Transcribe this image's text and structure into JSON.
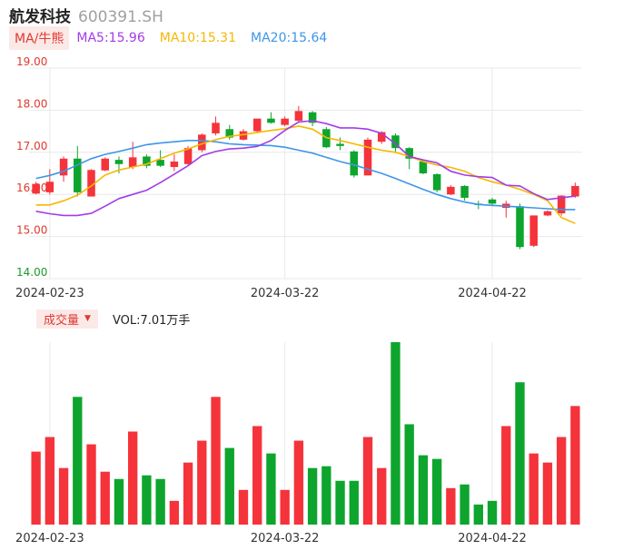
{
  "header": {
    "name": "航发科技",
    "code": "600391.SH"
  },
  "ma": {
    "toggle_label": "MA/牛熊",
    "items": [
      {
        "text": "MA5:15.96",
        "color": "#a23ce8"
      },
      {
        "text": "MA10:15.31",
        "color": "#f5b800"
      },
      {
        "text": "MA20:15.64",
        "color": "#3d96e8"
      }
    ]
  },
  "volume": {
    "toggle_label": "成交量",
    "value_text": "VOL:7.01万手"
  },
  "colors": {
    "up": "#f5333a",
    "down": "#0da52d",
    "grid": "#e8e8e8"
  },
  "chart_data": {
    "type": "candlestick",
    "y_axis": {
      "ticks": [
        "19.00",
        "18.00",
        "17.00",
        "16.00",
        "15.00",
        "14.00"
      ],
      "range": [
        14.0,
        19.0
      ]
    },
    "x_axis": {
      "tick_labels": [
        {
          "label": "2024-02-23",
          "index": 1
        },
        {
          "label": "2024-03-22",
          "index": 18
        },
        {
          "label": "2024-04-22",
          "index": 33
        }
      ]
    },
    "candles": [
      {
        "o": 16.02,
        "c": 16.25,
        "h": 16.3,
        "l": 16.0,
        "v": 0.4
      },
      {
        "o": 16.05,
        "c": 16.3,
        "h": 16.6,
        "l": 16.0,
        "v": 0.48
      },
      {
        "o": 16.45,
        "c": 16.85,
        "h": 16.9,
        "l": 16.3,
        "v": 0.31
      },
      {
        "o": 16.85,
        "c": 16.05,
        "h": 17.15,
        "l": 15.95,
        "v": 0.7
      },
      {
        "o": 15.95,
        "c": 16.58,
        "h": 16.6,
        "l": 15.95,
        "v": 0.44
      },
      {
        "o": 16.57,
        "c": 16.85,
        "h": 16.88,
        "l": 16.55,
        "v": 0.29
      },
      {
        "o": 16.82,
        "c": 16.72,
        "h": 16.9,
        "l": 16.5,
        "v": 0.25
      },
      {
        "o": 16.65,
        "c": 16.88,
        "h": 17.25,
        "l": 16.6,
        "v": 0.51
      },
      {
        "o": 16.9,
        "c": 16.68,
        "h": 16.95,
        "l": 16.62,
        "v": 0.27
      },
      {
        "o": 16.82,
        "c": 16.68,
        "h": 17.05,
        "l": 16.65,
        "v": 0.25
      },
      {
        "o": 16.65,
        "c": 16.78,
        "h": 16.95,
        "l": 16.55,
        "v": 0.13
      },
      {
        "o": 16.72,
        "c": 17.1,
        "h": 17.15,
        "l": 16.7,
        "v": 0.34
      },
      {
        "o": 17.05,
        "c": 17.42,
        "h": 17.45,
        "l": 17.0,
        "v": 0.46
      },
      {
        "o": 17.45,
        "c": 17.7,
        "h": 17.85,
        "l": 17.4,
        "v": 0.7
      },
      {
        "o": 17.55,
        "c": 17.35,
        "h": 17.65,
        "l": 17.3,
        "v": 0.42
      },
      {
        "o": 17.3,
        "c": 17.5,
        "h": 17.55,
        "l": 17.28,
        "v": 0.19
      },
      {
        "o": 17.5,
        "c": 17.8,
        "h": 17.8,
        "l": 17.45,
        "v": 0.54
      },
      {
        "o": 17.8,
        "c": 17.7,
        "h": 17.95,
        "l": 17.68,
        "v": 0.39
      },
      {
        "o": 17.65,
        "c": 17.8,
        "h": 17.85,
        "l": 17.62,
        "v": 0.19
      },
      {
        "o": 17.75,
        "c": 17.98,
        "h": 18.1,
        "l": 17.7,
        "v": 0.46
      },
      {
        "o": 17.95,
        "c": 17.7,
        "h": 17.98,
        "l": 17.62,
        "v": 0.31
      },
      {
        "o": 17.55,
        "c": 17.12,
        "h": 17.6,
        "l": 17.1,
        "v": 0.32
      },
      {
        "o": 17.2,
        "c": 17.15,
        "h": 17.35,
        "l": 17.05,
        "v": 0.24
      },
      {
        "o": 17.02,
        "c": 16.45,
        "h": 17.05,
        "l": 16.4,
        "v": 0.24
      },
      {
        "o": 16.45,
        "c": 17.3,
        "h": 17.35,
        "l": 16.45,
        "v": 0.48
      },
      {
        "o": 17.25,
        "c": 17.48,
        "h": 17.5,
        "l": 17.2,
        "v": 0.31
      },
      {
        "o": 17.4,
        "c": 17.1,
        "h": 17.45,
        "l": 17.0,
        "v": 1.0
      },
      {
        "o": 17.1,
        "c": 16.85,
        "h": 17.12,
        "l": 16.6,
        "v": 0.55
      },
      {
        "o": 16.78,
        "c": 16.5,
        "h": 16.82,
        "l": 16.48,
        "v": 0.38
      },
      {
        "o": 16.48,
        "c": 16.1,
        "h": 16.5,
        "l": 16.05,
        "v": 0.36
      },
      {
        "o": 16.0,
        "c": 16.18,
        "h": 16.22,
        "l": 15.98,
        "v": 0.2
      },
      {
        "o": 16.2,
        "c": 15.92,
        "h": 16.22,
        "l": 15.85,
        "v": 0.22
      },
      {
        "o": 15.78,
        "c": 15.75,
        "h": 15.85,
        "l": 15.65,
        "v": 0.11
      },
      {
        "o": 15.88,
        "c": 15.78,
        "h": 15.92,
        "l": 15.72,
        "v": 0.13
      },
      {
        "o": 15.68,
        "c": 15.78,
        "h": 15.85,
        "l": 15.45,
        "v": 0.54
      },
      {
        "o": 15.72,
        "c": 14.75,
        "h": 15.78,
        "l": 14.7,
        "v": 0.78
      },
      {
        "o": 14.78,
        "c": 15.5,
        "h": 15.5,
        "l": 14.75,
        "v": 0.39
      },
      {
        "o": 15.5,
        "c": 15.6,
        "h": 15.62,
        "l": 15.48,
        "v": 0.34
      },
      {
        "o": 15.55,
        "c": 15.97,
        "h": 15.98,
        "l": 15.5,
        "v": 0.48
      },
      {
        "o": 15.95,
        "c": 16.2,
        "h": 16.28,
        "l": 15.92,
        "v": 0.65
      }
    ],
    "ma5": [
      15.6,
      15.54,
      15.5,
      15.5,
      15.55,
      15.72,
      15.9,
      16.0,
      16.1,
      16.28,
      16.48,
      16.68,
      16.92,
      17.02,
      17.08,
      17.1,
      17.14,
      17.28,
      17.52,
      17.72,
      17.75,
      17.68,
      17.58,
      17.58,
      17.55,
      17.45,
      17.2,
      16.9,
      16.82,
      16.75,
      16.55,
      16.46,
      16.42,
      16.4,
      16.22,
      16.2,
      16.02,
      15.88,
      15.92,
      15.96
    ],
    "ma10": [
      15.75,
      15.75,
      15.85,
      15.98,
      16.2,
      16.46,
      16.58,
      16.65,
      16.72,
      16.85,
      16.98,
      17.08,
      17.2,
      17.3,
      17.38,
      17.42,
      17.47,
      17.52,
      17.56,
      17.62,
      17.55,
      17.35,
      17.28,
      17.2,
      17.12,
      17.05,
      17.0,
      16.9,
      16.78,
      16.7,
      16.64,
      16.55,
      16.4,
      16.3,
      16.22,
      16.12,
      16.0,
      15.85,
      15.45,
      15.31
    ],
    "ma20": [
      16.38,
      16.45,
      16.55,
      16.7,
      16.85,
      16.95,
      17.02,
      17.1,
      17.18,
      17.22,
      17.25,
      17.28,
      17.28,
      17.25,
      17.2,
      17.18,
      17.17,
      17.16,
      17.12,
      17.05,
      16.98,
      16.88,
      16.78,
      16.7,
      16.6,
      16.5,
      16.38,
      16.25,
      16.12,
      16.0,
      15.9,
      15.82,
      15.76,
      15.74,
      15.72,
      15.7,
      15.68,
      15.66,
      15.64,
      15.64
    ]
  }
}
